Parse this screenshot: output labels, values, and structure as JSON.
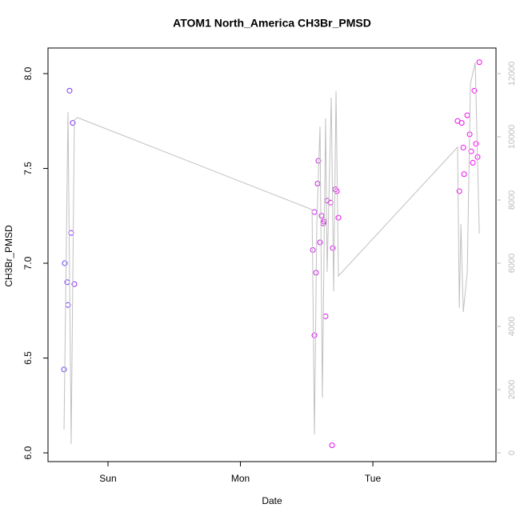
{
  "chart_data": {
    "type": "scatter",
    "title": "ATOM1 North_America CH3Br_PMSD",
    "x_label": "Date",
    "y_label": "CH3Br_PMSD",
    "xlim": [
      0.547,
      3.93
    ],
    "xticks": [
      {
        "value": 1,
        "label": "Sun"
      },
      {
        "value": 2,
        "label": "Mon"
      },
      {
        "value": 3,
        "label": "Tue"
      }
    ],
    "ylim": [
      5.954,
      8.135
    ],
    "yticks": [
      {
        "value": 6,
        "label": "6.0"
      },
      6.5,
      {
        "value": 7,
        "label": "7.0"
      },
      7.5,
      {
        "value": 8,
        "label": "8.0"
      }
    ],
    "y2lim": [
      -278,
      12810
    ],
    "y2ticks": [
      0,
      2000,
      4000,
      6000,
      8000,
      10000,
      12000
    ],
    "y2_tick_color": "#bbbbbb",
    "series": [
      {
        "type": "scatter",
        "x": [
          0.668,
          0.674,
          0.692,
          0.698,
          0.71,
          0.722,
          0.734,
          0.746,
          2.547,
          2.559,
          2.559,
          2.571,
          2.583,
          2.589,
          2.601,
          2.613,
          2.625,
          2.631,
          2.643,
          2.655,
          2.68,
          2.692,
          2.698,
          2.716,
          2.728,
          2.74,
          3.64,
          3.653,
          3.671,
          3.683,
          3.689,
          3.713,
          3.731,
          3.743,
          3.755,
          3.767,
          3.779,
          3.791,
          3.804
        ],
        "values": [
          6.44,
          7.0,
          6.9,
          6.78,
          7.91,
          7.16,
          7.74,
          6.89,
          7.07,
          7.27,
          6.62,
          6.95,
          7.42,
          7.54,
          7.11,
          7.25,
          7.21,
          7.22,
          6.72,
          7.33,
          7.32,
          6.04,
          7.08,
          7.39,
          7.38,
          7.24,
          7.75,
          7.38,
          7.74,
          7.61,
          7.47,
          7.78,
          7.68,
          7.59,
          7.53,
          7.91,
          7.63,
          7.56,
          8.06
        ],
        "colors": [
          "#6a3cf8",
          "#6e3af8",
          "#7238f8",
          "#7636f7",
          "#7a34f7",
          "#7e32f7",
          "#8230f6",
          "#862ef6",
          "#c81ef0",
          "#ca1df0",
          "#cc1cf0",
          "#ce1bf0",
          "#d01af0",
          "#d219ef",
          "#d418ef",
          "#d617ef",
          "#d816ef",
          "#da15ef",
          "#dc14ee",
          "#de13ee",
          "#e012ee",
          "#e211ee",
          "#e410ee",
          "#e60fed",
          "#e80eed",
          "#ea0ded",
          "#f00cf0",
          "#f00cf0",
          "#f20bf1",
          "#f20bf1",
          "#f40af2",
          "#f40af2",
          "#f609f3",
          "#f609f3",
          "#f808f4",
          "#f808f4",
          "#fa06f6",
          "#fc04f8",
          "#ff00ff"
        ]
      },
      {
        "type": "line",
        "axis": "y2",
        "color": "#c0c0c0",
        "x": [
          0.668,
          0.698,
          0.722,
          0.746,
          0.77,
          2.541,
          2.559,
          2.577,
          2.601,
          2.619,
          2.643,
          2.655,
          2.686,
          2.704,
          2.722,
          2.74,
          3.64,
          3.653,
          3.665,
          3.683,
          3.713,
          3.737,
          3.773,
          3.804
        ],
        "values": [
          734,
          10784,
          278,
          10530,
          10608,
          7696,
          582,
          7240,
          10329,
          1747,
          10582,
          5722,
          11240,
          5114,
          11443,
          5595,
          9671,
          4582,
          7240,
          4456,
          5722,
          11671,
          12354,
          6937
        ]
      }
    ]
  }
}
